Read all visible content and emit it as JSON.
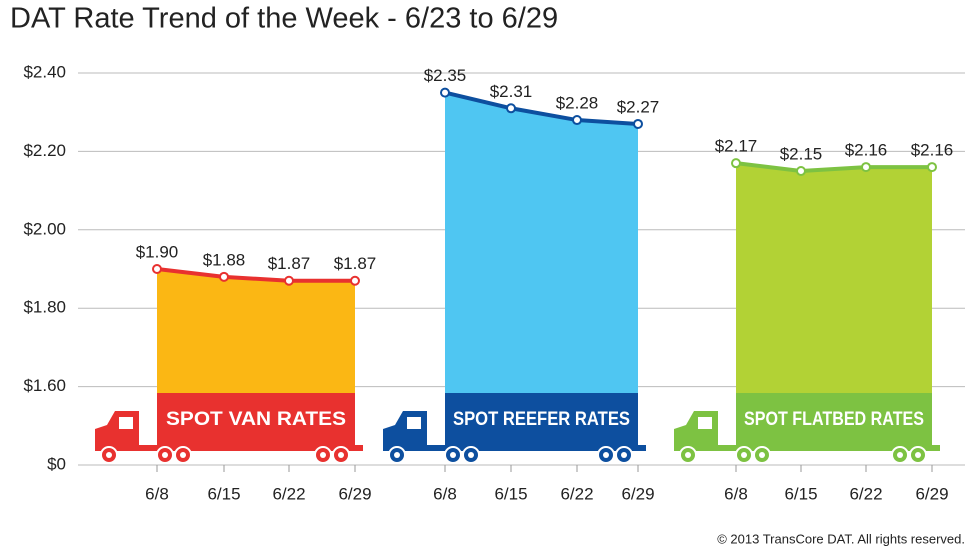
{
  "chart_data": {
    "type": "area",
    "title": "DAT Rate Trend of the Week - 6/23 to 6/29",
    "categories": [
      "6/8",
      "6/15",
      "6/22",
      "6/29"
    ],
    "series": [
      {
        "name": "SPOT VAN RATES",
        "color": "#e8312f",
        "fill": "#fbb714",
        "values": [
          1.9,
          1.88,
          1.87,
          1.87
        ],
        "value_labels": [
          "$1.90",
          "$1.88",
          "$1.87",
          "$1.87"
        ]
      },
      {
        "name": "SPOT REEFER RATES",
        "color": "#0d4f9f",
        "fill": "#4fc6f2",
        "values": [
          2.35,
          2.31,
          2.28,
          2.27
        ],
        "value_labels": [
          "$2.35",
          "$2.31",
          "$2.28",
          "$2.27"
        ]
      },
      {
        "name": "SPOT FLATBED RATES",
        "color": "#7dc242",
        "fill": "#b2d235",
        "values": [
          2.17,
          2.15,
          2.16,
          2.16
        ],
        "value_labels": [
          "$2.17",
          "$2.15",
          "$2.16",
          "$2.16"
        ]
      }
    ],
    "ylim": [
      1.4,
      2.4
    ],
    "y_break": true,
    "yticks": [
      {
        "value": 0,
        "label": "$0"
      },
      {
        "value": 1.6,
        "label": "$1.60"
      },
      {
        "value": 1.8,
        "label": "$1.80"
      },
      {
        "value": 2.0,
        "label": "$2.00"
      },
      {
        "value": 2.2,
        "label": "$2.20"
      },
      {
        "value": 2.4,
        "label": "$2.40"
      }
    ],
    "grid": true,
    "copyright": "© 2013 TransCore DAT. All rights reserved."
  }
}
